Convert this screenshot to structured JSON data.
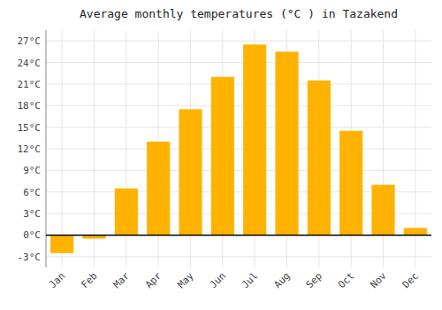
{
  "chart_data": {
    "type": "bar",
    "title": "Average monthly temperatures (°C ) in Tazakend",
    "categories": [
      "Jan",
      "Feb",
      "Mar",
      "Apr",
      "May",
      "Jun",
      "Jul",
      "Aug",
      "Sep",
      "Oct",
      "Nov",
      "Dec"
    ],
    "values": [
      -2.5,
      -0.5,
      6.5,
      13.0,
      17.5,
      22.0,
      26.5,
      25.5,
      21.5,
      14.5,
      7.0,
      1.0
    ],
    "color": "#FFB300",
    "ylim": [
      -4.5,
      28.5
    ],
    "yticks": [
      {
        "value": -3,
        "label": "-3°C"
      },
      {
        "value": 0,
        "label": "0°C"
      },
      {
        "value": 3,
        "label": "3°C"
      },
      {
        "value": 6,
        "label": "6°C"
      },
      {
        "value": 9,
        "label": "9°C"
      },
      {
        "value": 12,
        "label": "12°C"
      },
      {
        "value": 15,
        "label": "15°C"
      },
      {
        "value": 18,
        "label": "18°C"
      },
      {
        "value": 21,
        "label": "21°C"
      },
      {
        "value": 24,
        "label": "24°C"
      },
      {
        "value": 27,
        "label": "27°C"
      }
    ],
    "grid": true
  }
}
